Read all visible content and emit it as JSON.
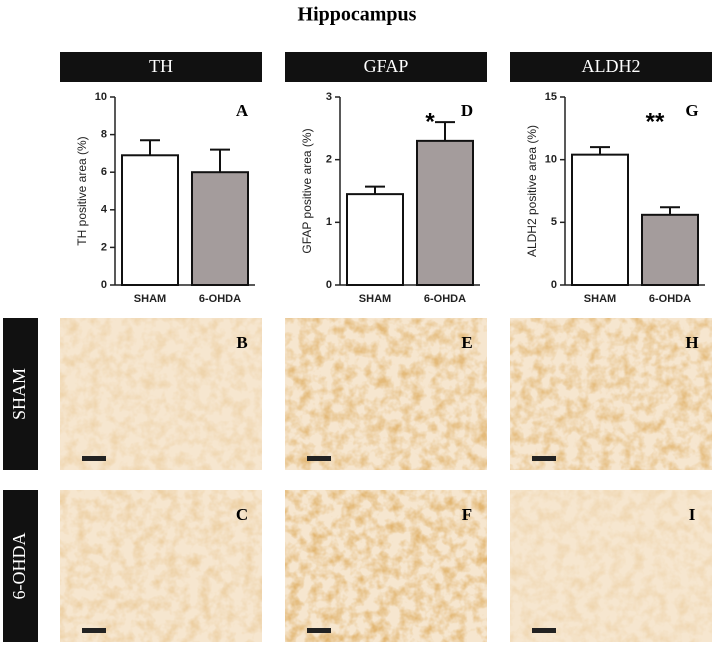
{
  "title": "Hippocampus",
  "images": {
    "row_labels": [
      "SHAM",
      "6-OHDA"
    ],
    "panels": [
      [
        "B",
        "E",
        "H"
      ],
      [
        "C",
        "F",
        "I"
      ]
    ]
  },
  "chart_data": [
    {
      "type": "bar",
      "title": "TH",
      "panel": "A",
      "ylabel": "TH positive area (%)",
      "categories": [
        "SHAM",
        "6-OHDA"
      ],
      "values": [
        6.9,
        6.0
      ],
      "errors": [
        0.8,
        1.2
      ],
      "colors": [
        "#ffffff",
        "#a49c9c"
      ],
      "ylim": [
        0,
        10
      ],
      "yticks": [
        0,
        2,
        4,
        6,
        8,
        10
      ]
    },
    {
      "type": "bar",
      "title": "GFAP",
      "panel": "D",
      "ylabel": "GFAP positive area (%)",
      "annotation": "*",
      "categories": [
        "SHAM",
        "6-OHDA"
      ],
      "values": [
        1.45,
        2.3
      ],
      "errors": [
        0.12,
        0.3
      ],
      "colors": [
        "#ffffff",
        "#a49c9c"
      ],
      "ylim": [
        0,
        3
      ],
      "yticks": [
        0,
        1,
        2,
        3
      ]
    },
    {
      "type": "bar",
      "title": "ALDH2",
      "panel": "G",
      "ylabel": "ALDH2 positive area (%)",
      "annotation": "**",
      "categories": [
        "SHAM",
        "6-OHDA"
      ],
      "values": [
        10.4,
        5.6
      ],
      "errors": [
        0.6,
        0.6
      ],
      "colors": [
        "#ffffff",
        "#a49c9c"
      ],
      "ylim": [
        0,
        15
      ],
      "yticks": [
        0,
        5,
        10,
        15
      ]
    }
  ]
}
